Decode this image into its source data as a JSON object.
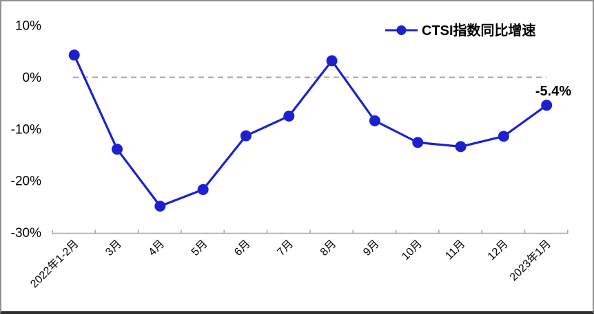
{
  "chart_data": {
    "type": "line",
    "title": "",
    "legend": {
      "label": "CTSI指数同比增速",
      "position": "top-right"
    },
    "series": [
      {
        "name": "CTSI指数同比增速",
        "values": [
          4.3,
          -13.9,
          -24.9,
          -21.7,
          -11.3,
          -7.5,
          3.2,
          -8.4,
          -12.6,
          -13.4,
          -11.4,
          -5.4
        ]
      }
    ],
    "categories": [
      "2022年1-2月",
      "3月",
      "4月",
      "5月",
      "6月",
      "7月",
      "8月",
      "9月",
      "10月",
      "11月",
      "12月",
      "2023年1月"
    ],
    "unit": "%",
    "xlabel": "",
    "ylabel": "",
    "ylim": [
      -30,
      10
    ],
    "yticks": [
      {
        "value": 10,
        "label": "10%"
      },
      {
        "value": 0,
        "label": "0%"
      },
      {
        "value": -10,
        "label": "-10%"
      },
      {
        "value": -20,
        "label": "-20%"
      },
      {
        "value": -30,
        "label": "-30%"
      }
    ],
    "grid": "zero-line-only",
    "zero_line": {
      "style": "dashed",
      "color": "#a6a6a6"
    },
    "annotation": {
      "text": "-5.4%",
      "target_category": "2023年1月",
      "target_index": 11
    },
    "colors": {
      "line": "#1d21cd",
      "marker": "#1d21cd",
      "axis": "#a6a6a6",
      "text": "#000000"
    }
  }
}
